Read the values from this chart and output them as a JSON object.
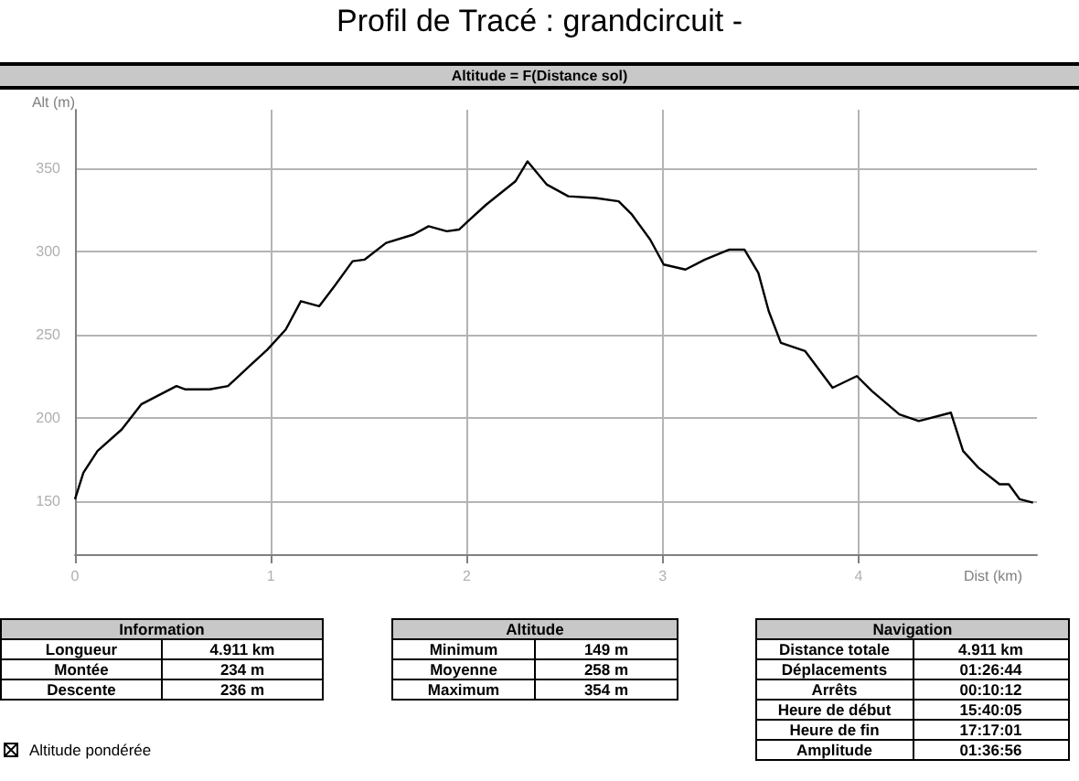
{
  "chart_data": {
    "type": "line",
    "title": "Profil de Tracé : grandcircuit -",
    "subtitle": "Altitude = F(Distance sol)",
    "xlabel": "Dist (km)",
    "ylabel": "Alt (m)",
    "xlim": [
      0,
      4.91
    ],
    "xticks": [
      0,
      1,
      2,
      3,
      4
    ],
    "ylim": [
      118,
      385
    ],
    "yticks": [
      150,
      200,
      250,
      300,
      350
    ],
    "grid": true,
    "marker": "none",
    "line_style": "solid",
    "series": [
      {
        "color": "#000000",
        "x": [
          0,
          0.043,
          0.115,
          0.239,
          0.338,
          0.518,
          0.564,
          0.688,
          0.781,
          0.89,
          0.983,
          1.076,
          1.153,
          1.247,
          1.324,
          1.417,
          1.479,
          1.588,
          1.727,
          1.805,
          1.898,
          1.96,
          2.006,
          2.099,
          2.248,
          2.31,
          2.409,
          2.518,
          2.657,
          2.775,
          2.843,
          2.936,
          3.005,
          3.116,
          3.215,
          3.34,
          3.417,
          3.488,
          3.541,
          3.603,
          3.727,
          3.867,
          3.991,
          4.068,
          4.208,
          4.307,
          4.471,
          4.533,
          4.611,
          4.719,
          4.766,
          4.822,
          4.89
        ],
        "values": [
          151,
          167,
          180,
          193,
          208,
          219,
          217,
          217,
          219,
          231,
          241,
          253,
          270,
          267,
          279,
          294,
          295,
          305,
          310,
          315,
          312,
          313,
          318,
          328,
          342,
          354,
          340,
          333,
          332,
          330,
          322,
          307,
          292,
          289,
          295,
          301,
          301,
          287,
          264,
          245,
          240,
          218,
          225,
          216,
          202,
          198,
          203,
          180,
          170,
          160,
          160,
          151,
          149
        ]
      }
    ],
    "annotations": [
      "Information",
      "Longueur",
      "4.911 km",
      "Montée",
      "234 m",
      "Descente",
      "236 m",
      "Altitude",
      "Minimum",
      "149 m",
      "Moyenne",
      "258 m",
      "Maximum",
      "354 m",
      "Navigation",
      "Distance totale",
      "4.911 km",
      "Déplacements",
      "01:26:44",
      "Arrêts",
      "00:10:12",
      "Heure de début",
      "15:40:05",
      "Heure de fin",
      "17:17:01",
      "Amplitude",
      "01:36:56",
      "Altitude pondérée"
    ]
  }
}
